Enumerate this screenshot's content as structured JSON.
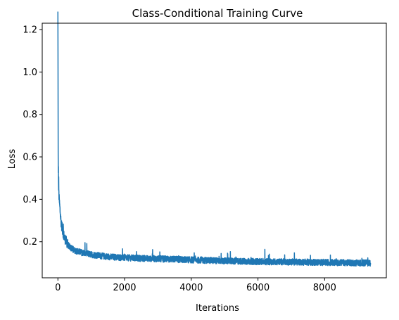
{
  "chart_data": {
    "type": "line",
    "title": "Class-Conditional Training Curve",
    "xlabel": "Iterations",
    "ylabel": "Loss",
    "xlim": [
      -470,
      9850
    ],
    "ylim": [
      0.03,
      1.23
    ],
    "xticks": [
      0,
      2000,
      4000,
      6000,
      8000
    ],
    "xtick_labels": [
      "0",
      "2000",
      "4000",
      "6000",
      "8000"
    ],
    "yticks": [
      0.2,
      0.4,
      0.6,
      0.8,
      1.0,
      1.2
    ],
    "ytick_labels": [
      "0.2",
      "0.4",
      "0.6",
      "0.8",
      "1.0",
      "1.2"
    ],
    "grid": false,
    "legend": "none",
    "series": [
      {
        "color": "#1f77b4",
        "total_iterations": 9380,
        "x": [
          0,
          10,
          20,
          40,
          60,
          80,
          100,
          150,
          200,
          300,
          400,
          500,
          700,
          1000,
          1500,
          2000,
          3000,
          4000,
          5000,
          6000,
          7000,
          8000,
          9380
        ],
        "y": [
          1.19,
          0.52,
          0.44,
          0.39,
          0.35,
          0.31,
          0.28,
          0.24,
          0.21,
          0.18,
          0.165,
          0.155,
          0.145,
          0.135,
          0.125,
          0.12,
          0.115,
          0.11,
          0.105,
          0.102,
          0.1,
          0.098,
          0.095
        ],
        "noise_band": 0.03
      }
    ]
  }
}
